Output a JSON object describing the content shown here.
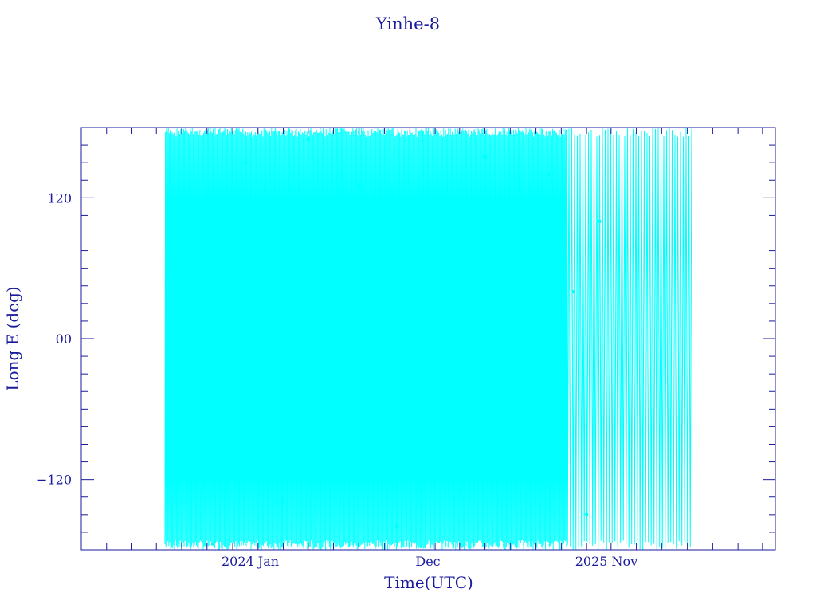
{
  "chart_data": {
    "type": "line",
    "title": "Yinhe-8",
    "xlabel": "Time(UTC)",
    "ylabel": "Long E (deg)",
    "x_tick_labels": [
      "2024 Jan",
      "Dec",
      "2025 Nov"
    ],
    "y_tick_labels": [
      "120",
      "00",
      "−120"
    ],
    "ylim": [
      -180,
      180
    ],
    "grid": false,
    "series": [
      {
        "color": "#00ffff",
        "marker": "square",
        "description_values": "dense longitude samples spanning full -180 to 180 range; data roughly from mid-2023 to early 2026",
        "x": [
          "2023-07-15",
          "2023-08-01",
          "2023-09-01",
          "2023-10-01",
          "2023-11-01",
          "2023-12-01",
          "2024-01-01",
          "2024-02-01",
          "2024-03-01",
          "2024-04-01",
          "2024-05-01",
          "2024-06-01",
          "2024-07-01",
          "2024-08-01",
          "2024-09-01",
          "2024-10-01",
          "2024-11-01",
          "2024-12-01",
          "2025-01-01",
          "2025-02-01",
          "2025-03-01",
          "2025-04-01",
          "2025-05-01",
          "2025-06-01",
          "2025-07-01",
          "2025-08-01",
          "2025-09-01",
          "2025-10-01",
          "2025-11-01",
          "2025-12-01",
          "2026-01-01",
          "2026-02-01"
        ],
        "y": [
          -175,
          60,
          -80,
          150,
          -30,
          95,
          -140,
          20,
          170,
          -110,
          45,
          -60,
          130,
          -20,
          80,
          -160,
          10,
          115,
          -90,
          65,
          -130,
          30,
          155,
          -45,
          85,
          -120,
          5,
          140,
          -70,
          40,
          -150,
          100
        ]
      }
    ]
  }
}
